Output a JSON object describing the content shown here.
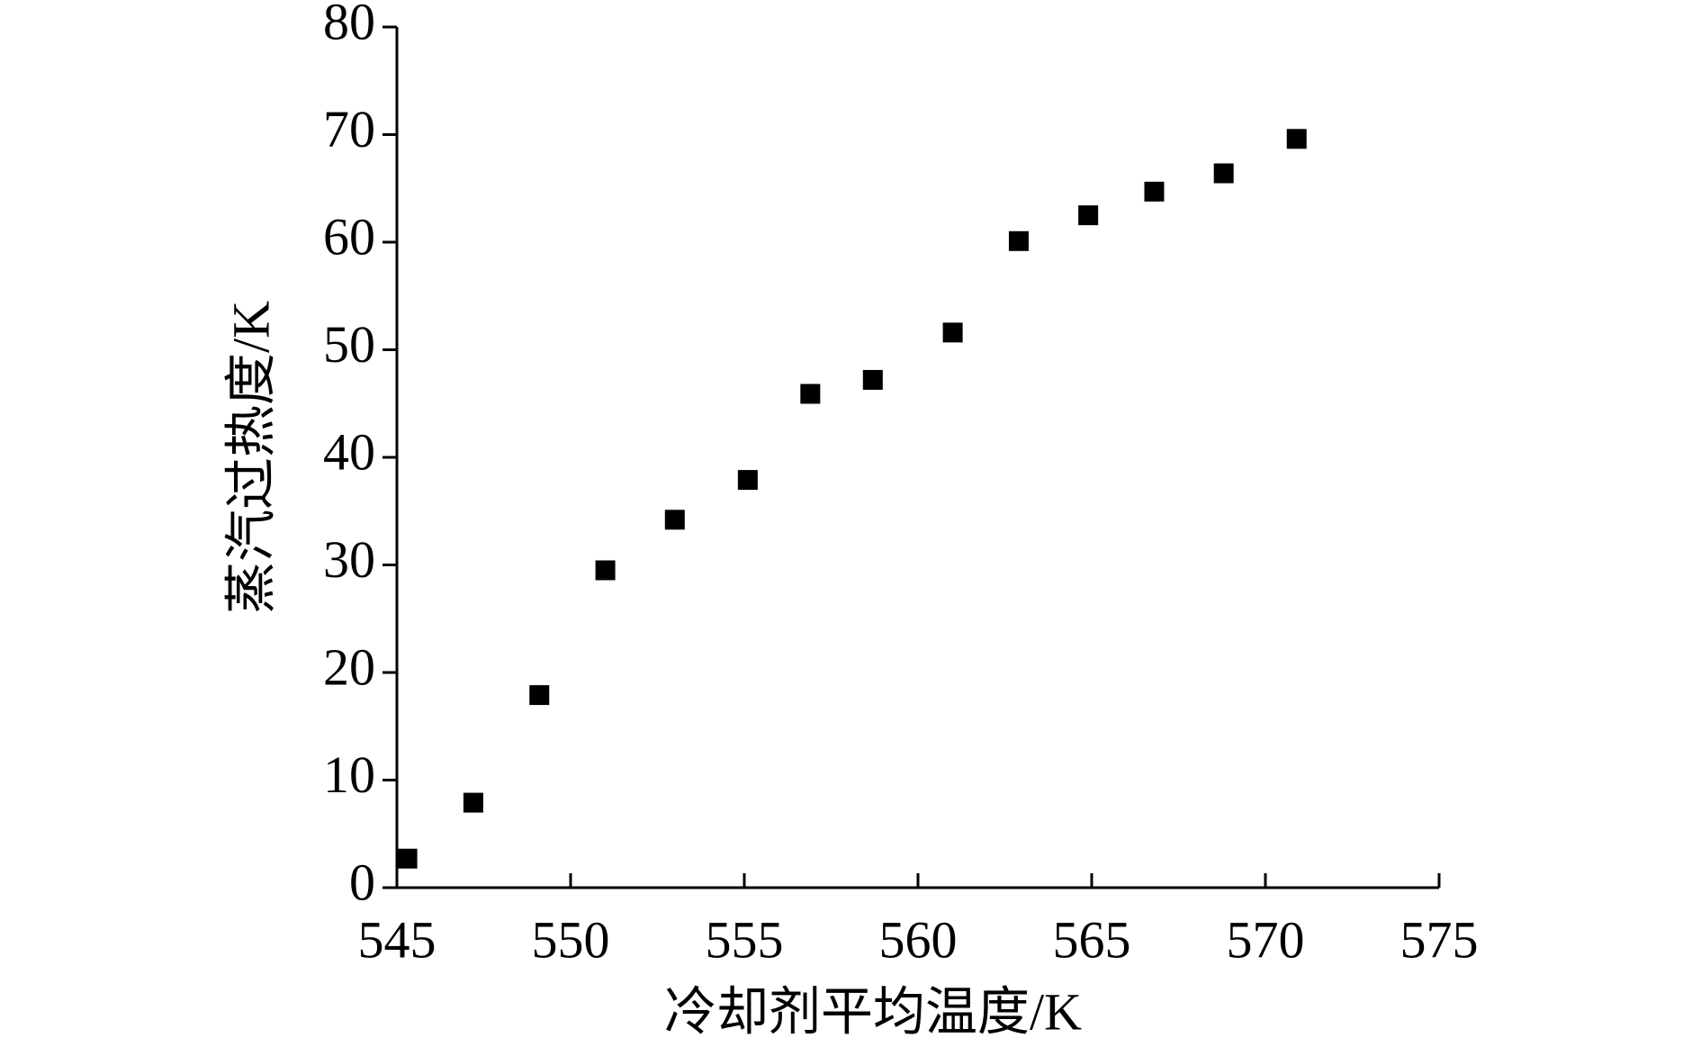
{
  "chart_data": {
    "type": "scatter",
    "x_label": "冷却剂平均温度/K",
    "y_label": "蒸汽过热度/K",
    "series": [
      {
        "color": "#000000",
        "marker": "square",
        "x": [
          545.3,
          547.2,
          549.1,
          551.0,
          553.0,
          555.1,
          556.9,
          558.7,
          561.0,
          562.9,
          564.9,
          566.8,
          568.8,
          570.9
        ],
        "values": [
          2.7,
          7.9,
          17.9,
          29.5,
          34.2,
          37.9,
          45.9,
          47.2,
          51.6,
          60.1,
          62.5,
          64.7,
          66.4,
          69.6
        ]
      }
    ],
    "xlim": [
      545,
      575
    ],
    "xticks": [
      545,
      550,
      555,
      560,
      565,
      570,
      575
    ],
    "ylim": [
      0,
      80
    ],
    "yticks": [
      0,
      10,
      20,
      30,
      40,
      50,
      60,
      70,
      80
    ],
    "grid": false
  }
}
